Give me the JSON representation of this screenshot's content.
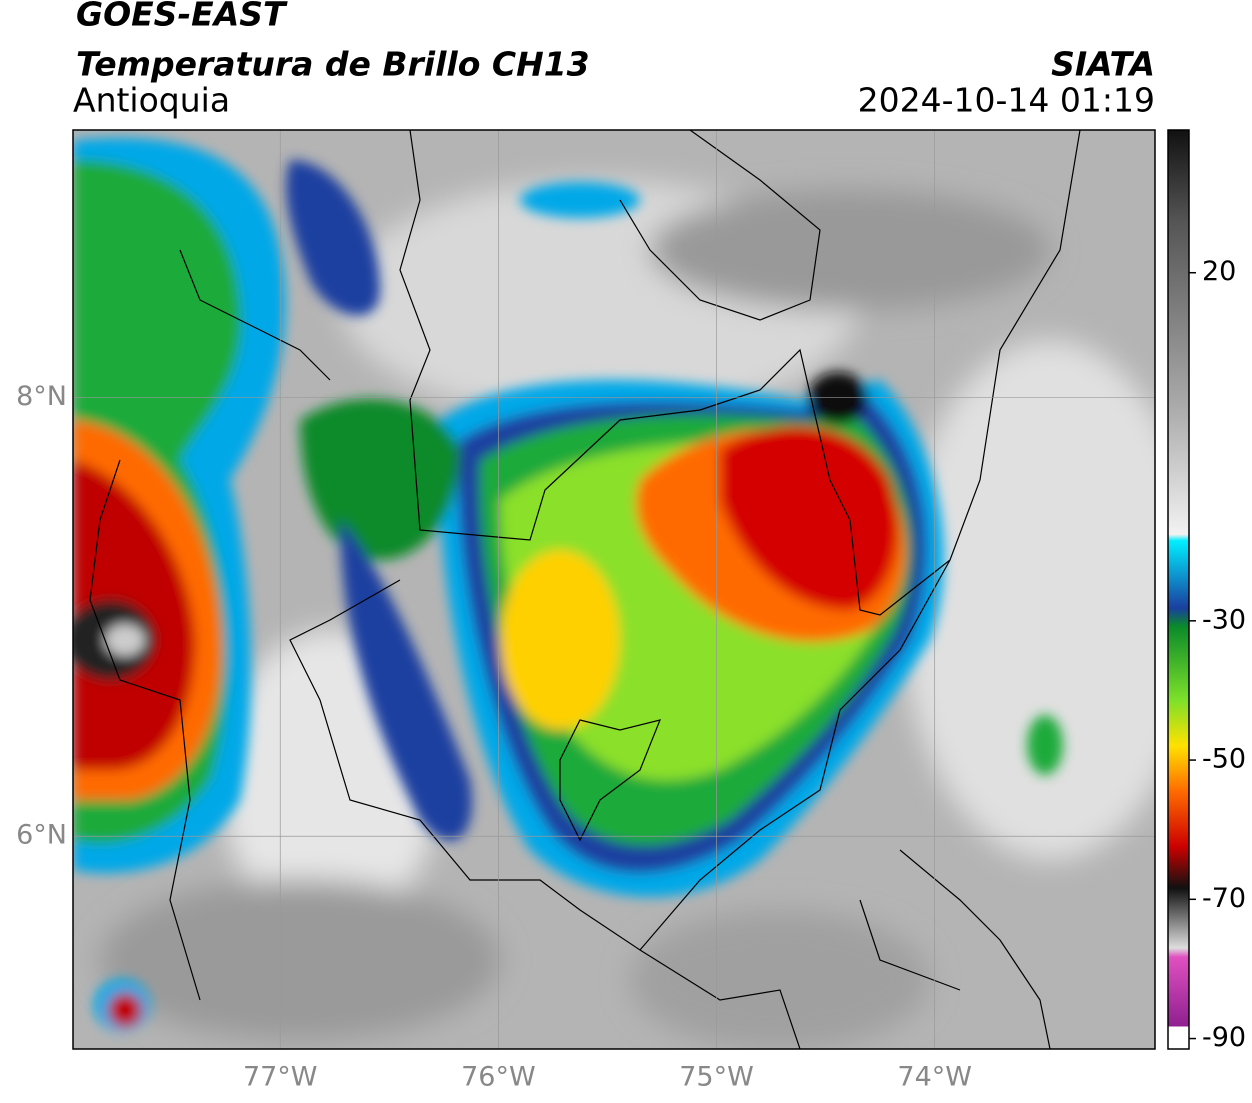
{
  "header": {
    "satellite": "GOES-EAST",
    "product": "Temperatura de Brillo CH13",
    "region": "Antioquia",
    "source": "SIATA",
    "datetime": "2024-10-14 01:19"
  },
  "map": {
    "xlim": [
      -77.95,
      -72.99
    ],
    "ylim": [
      5.03,
      9.22
    ],
    "lon_ticks": [
      {
        "value": -77,
        "label": "77°W"
      },
      {
        "value": -76,
        "label": "76°W"
      },
      {
        "value": -75,
        "label": "75°W"
      },
      {
        "value": -74,
        "label": "74°W"
      }
    ],
    "lat_ticks": [
      {
        "value": 8,
        "label": "8°N"
      },
      {
        "value": 6,
        "label": "6°N"
      }
    ]
  },
  "colorbar": {
    "lim": [
      -91.5,
      40.5
    ],
    "ticks": [
      20,
      -30,
      -50,
      -70,
      -90
    ]
  }
}
